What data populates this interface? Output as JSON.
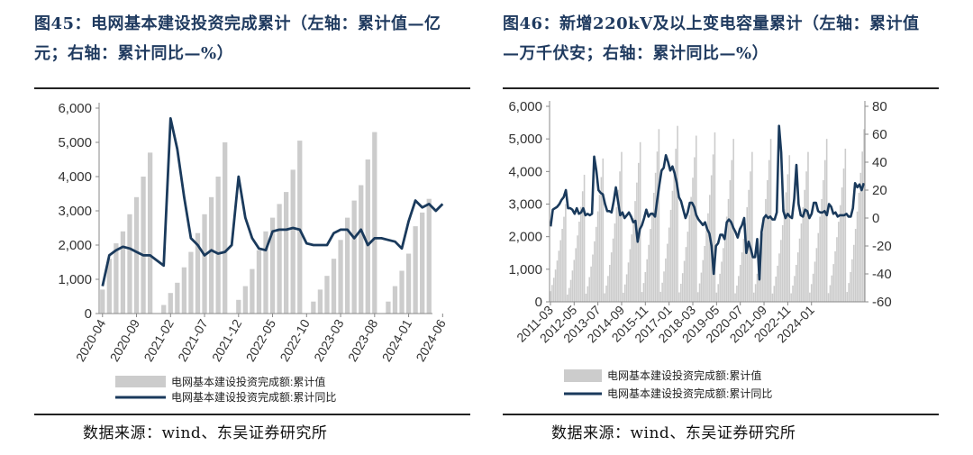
{
  "figures": [
    {
      "title": "图45：电网基本建设投资完成累计（左轴：累计值—亿元；右轴：累计同比—%）",
      "source": "数据来源：wind、东吴证券研究所"
    },
    {
      "title": "图46：新增220kV及以上变电容量累计（左轴：累计值—万千伏安；右轴：累计同比—%）",
      "source": "数据来源：wind、东吴证券研究所"
    }
  ],
  "chart_data": [
    {
      "type": "bar",
      "combo": "bar+line (dual axis)",
      "legend_position": "bottom",
      "grid": false,
      "y_left": {
        "ylim": [
          0,
          6000
        ],
        "ticks": [
          "0",
          "1,000",
          "2,000",
          "3,000",
          "4,000",
          "5,000",
          "6,000"
        ]
      },
      "y_right": null,
      "x_tick_labels": [
        "2020-04",
        "2020-09",
        "2021-02",
        "2021-07",
        "2021-12",
        "2022-05",
        "2022-10",
        "2023-03",
        "2023-08",
        "2024-01",
        "2024-06"
      ],
      "series": [
        {
          "name": "电网基本建设投资完成额:累计值",
          "kind": "bar",
          "axis": "left",
          "color": "#cccccc",
          "values": [
            700,
            1600,
            2050,
            2400,
            2900,
            3400,
            4000,
            4700,
            null,
            250,
            600,
            900,
            1350,
            1800,
            2350,
            2900,
            3400,
            4000,
            5000,
            null,
            400,
            800,
            1300,
            1850,
            2400,
            2800,
            3200,
            3550,
            4200,
            5050,
            null,
            350,
            700,
            1100,
            1600,
            2150,
            2800,
            3300,
            3750,
            4500,
            5300,
            null,
            350,
            800,
            1250,
            1750,
            2550,
            2950,
            3350
          ]
        },
        {
          "name": "电网基本建设投资完成额:累计同比",
          "kind": "line",
          "axis": "left (drawn on primary scale)",
          "color": "#1a3a5c",
          "values": [
            800,
            1700,
            1850,
            1950,
            1900,
            1800,
            1700,
            1700,
            1550,
            1400,
            5700,
            4800,
            3400,
            2200,
            2000,
            1700,
            1850,
            1750,
            1800,
            2000,
            4000,
            2800,
            2200,
            1900,
            1850,
            2400,
            2450,
            2450,
            2500,
            2450,
            2050,
            2000,
            2000,
            2000,
            2350,
            2450,
            2450,
            2200,
            2450,
            2000,
            2200,
            2200,
            2150,
            2100,
            1900,
            2700,
            3300,
            3100,
            3200,
            3000,
            3200
          ]
        }
      ]
    },
    {
      "type": "bar",
      "combo": "bar+line (dual axis)",
      "legend_position": "bottom",
      "grid": false,
      "y_left": {
        "ylim": [
          0,
          6000
        ],
        "ticks": [
          "0",
          "1,000",
          "2,000",
          "3,000",
          "4,000",
          "5,000",
          "6,000"
        ]
      },
      "y_right": {
        "ylim": [
          -60,
          80
        ],
        "ticks": [
          "-60",
          "-40",
          "-20",
          "0",
          "20",
          "40",
          "60",
          "80"
        ]
      },
      "x_tick_labels": [
        "2011-03",
        "2012-05",
        "2013-07",
        "2014-09",
        "2015-11",
        "2017-01",
        "2018-03",
        "2019-05",
        "2020-07",
        "2021-09",
        "2022-11",
        "2024-01"
      ],
      "series": [
        {
          "name": "电网基本建设投资完成额:累计值",
          "kind": "bar",
          "axis": "left",
          "color": "#cccccc",
          "peaks": [
            3000,
            3900,
            4400,
            4600,
            4900,
            5300,
            5400,
            5100,
            5200,
            5000,
            4600,
            5000,
            4500,
            4600,
            5000,
            4700,
            5300
          ],
          "start_month": 3
        },
        {
          "name": "电网基本建设投资完成额:累计同比",
          "kind": "line",
          "axis": "right",
          "color": "#1a3a5c",
          "values": [
            -6,
            6,
            7,
            8,
            10,
            13,
            15,
            20,
            7,
            7,
            6,
            3,
            7,
            3,
            4,
            7,
            2,
            3,
            2,
            3,
            44,
            34,
            20,
            18,
            17,
            10,
            5,
            5,
            4,
            12,
            22,
            12,
            2,
            4,
            0,
            2,
            4,
            1,
            -3,
            -2,
            -17,
            -8,
            -5,
            0,
            6,
            1,
            3,
            3,
            1,
            13,
            24,
            34,
            36,
            45,
            40,
            34,
            37,
            32,
            25,
            15,
            12,
            6,
            0,
            4,
            11,
            11,
            8,
            2,
            -1,
            -3,
            -5,
            -3,
            -8,
            -11,
            -20,
            -40,
            -20,
            -18,
            -12,
            -12,
            -15,
            -3,
            -1,
            -3,
            -7,
            -10,
            -14,
            -8,
            -5,
            0,
            -25,
            -17,
            -22,
            -28,
            -28,
            -15,
            -44,
            -10,
            0,
            2,
            0,
            1,
            -1,
            -1,
            4,
            66,
            47,
            5,
            0,
            3,
            1,
            0,
            14,
            38,
            10,
            2,
            1,
            6,
            5,
            0,
            3,
            11,
            11,
            5,
            4,
            4,
            5,
            2,
            10,
            8,
            3,
            4,
            1,
            2,
            2,
            2,
            3,
            1,
            1,
            7,
            25,
            22,
            24,
            20,
            25
          ]
        }
      ]
    }
  ]
}
